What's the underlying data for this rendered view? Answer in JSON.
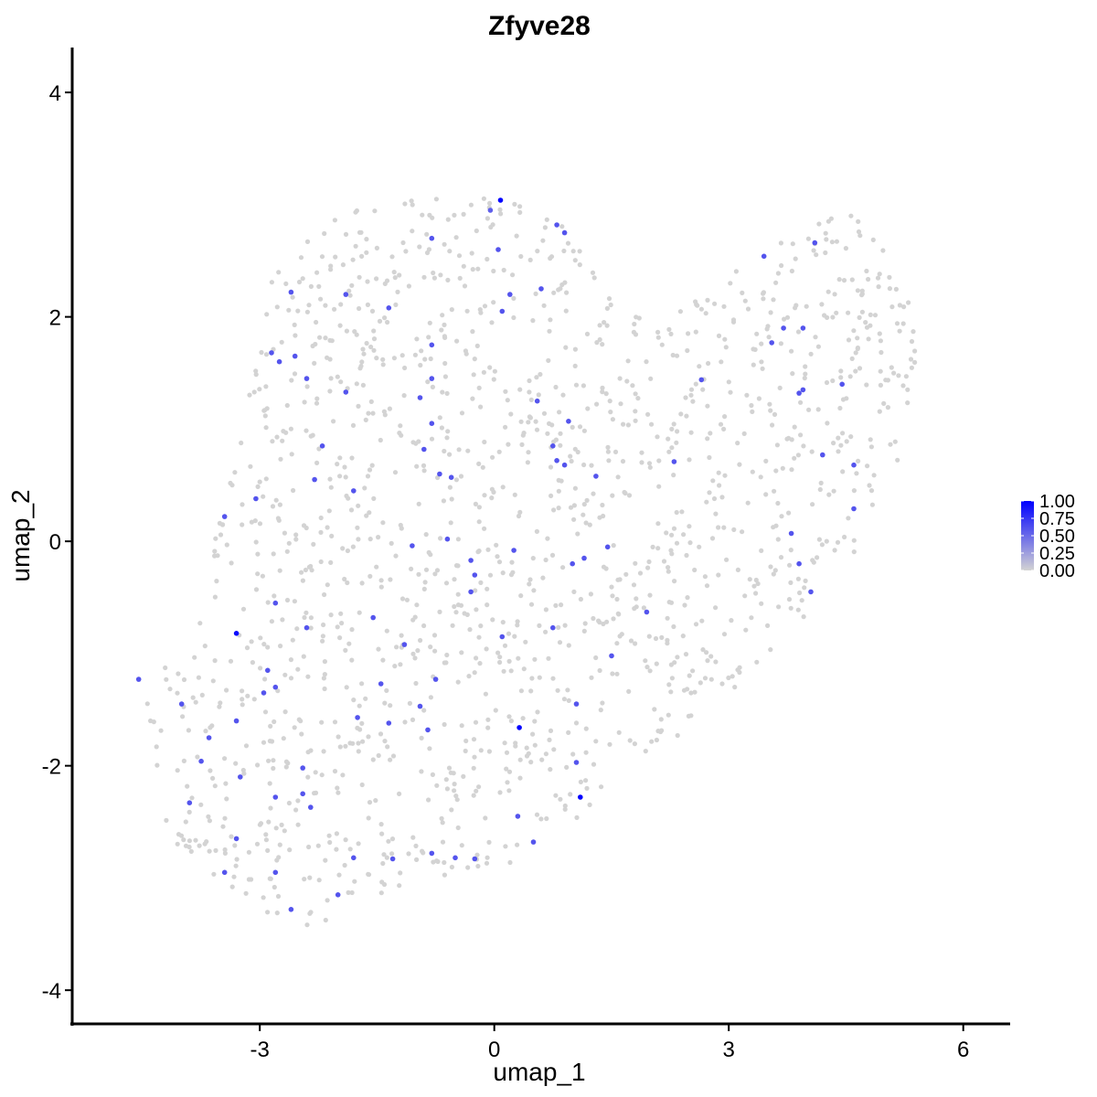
{
  "chart_data": {
    "type": "scatter",
    "title": "Zfyve28",
    "xlabel": "umap_1",
    "ylabel": "umap_2",
    "xlim": [
      -5.4,
      6.6
    ],
    "ylim": [
      -4.3,
      4.4
    ],
    "x_ticks": [
      -3,
      0,
      3,
      6
    ],
    "y_ticks": [
      -4,
      -2,
      0,
      2,
      4
    ],
    "grid": false,
    "color_low": "#d3d3d3",
    "color_high": "#0000ff",
    "legend": {
      "position": "right",
      "labels": [
        "1.00",
        "0.75",
        "0.50",
        "0.25",
        "0.00"
      ],
      "values": [
        1.0,
        0.75,
        0.5,
        0.25,
        0.0
      ]
    },
    "background_cell_count": 1500,
    "background_region": [
      [
        -4.5,
        -1.2
      ],
      [
        -4.2,
        -2.6
      ],
      [
        -3.4,
        -3.2
      ],
      [
        -2.2,
        -3.5
      ],
      [
        -1.3,
        -3.1
      ],
      [
        0.0,
        -3.0
      ],
      [
        0.9,
        -2.6
      ],
      [
        1.9,
        -2.0
      ],
      [
        2.6,
        -1.6
      ],
      [
        3.4,
        -1.1
      ],
      [
        4.4,
        -0.4
      ],
      [
        5.1,
        0.4
      ],
      [
        5.4,
        1.6
      ],
      [
        5.3,
        2.4
      ],
      [
        4.6,
        3.0
      ],
      [
        4.0,
        2.8
      ],
      [
        3.3,
        2.6
      ],
      [
        2.8,
        2.2
      ],
      [
        1.8,
        2.0
      ],
      [
        1.3,
        2.4
      ],
      [
        0.9,
        2.8
      ],
      [
        0.1,
        3.1
      ],
      [
        -1.0,
        3.05
      ],
      [
        -2.1,
        2.9
      ],
      [
        -2.9,
        2.3
      ],
      [
        -3.1,
        1.4
      ],
      [
        -3.3,
        0.8
      ],
      [
        -3.6,
        0.0
      ],
      [
        -3.8,
        -0.8
      ],
      [
        -4.0,
        -1.0
      ]
    ],
    "expressing_cells": [
      {
        "x": 0.08,
        "y": 3.04,
        "v": 1.0
      },
      {
        "x": -0.05,
        "y": 2.95,
        "v": 0.55
      },
      {
        "x": 0.8,
        "y": 2.82,
        "v": 0.6
      },
      {
        "x": 0.9,
        "y": 2.75,
        "v": 0.6
      },
      {
        "x": -0.8,
        "y": 2.7,
        "v": 0.6
      },
      {
        "x": 0.05,
        "y": 2.6,
        "v": 0.6
      },
      {
        "x": -1.9,
        "y": 2.2,
        "v": 0.6
      },
      {
        "x": 0.2,
        "y": 2.2,
        "v": 0.6
      },
      {
        "x": 0.6,
        "y": 2.25,
        "v": 0.6
      },
      {
        "x": -2.6,
        "y": 2.22,
        "v": 0.6
      },
      {
        "x": -1.35,
        "y": 2.08,
        "v": 0.6
      },
      {
        "x": 0.1,
        "y": 2.05,
        "v": 0.6
      },
      {
        "x": -0.8,
        "y": 1.75,
        "v": 0.6
      },
      {
        "x": -2.85,
        "y": 1.68,
        "v": 0.6
      },
      {
        "x": -2.55,
        "y": 1.65,
        "v": 0.6
      },
      {
        "x": -2.75,
        "y": 1.6,
        "v": 0.6
      },
      {
        "x": -2.4,
        "y": 1.45,
        "v": 0.6
      },
      {
        "x": -0.8,
        "y": 1.45,
        "v": 0.6
      },
      {
        "x": -1.9,
        "y": 1.33,
        "v": 0.6
      },
      {
        "x": -0.95,
        "y": 1.28,
        "v": 0.6
      },
      {
        "x": 0.55,
        "y": 1.25,
        "v": 0.6
      },
      {
        "x": -0.8,
        "y": 1.05,
        "v": 0.6
      },
      {
        "x": 0.95,
        "y": 1.07,
        "v": 0.6
      },
      {
        "x": -2.2,
        "y": 0.85,
        "v": 0.6
      },
      {
        "x": -0.9,
        "y": 0.82,
        "v": 0.6
      },
      {
        "x": 0.75,
        "y": 0.85,
        "v": 0.6
      },
      {
        "x": 0.8,
        "y": 0.72,
        "v": 0.6
      },
      {
        "x": 0.9,
        "y": 0.68,
        "v": 0.6
      },
      {
        "x": -0.7,
        "y": 0.6,
        "v": 0.6
      },
      {
        "x": -0.55,
        "y": 0.57,
        "v": 0.6
      },
      {
        "x": 1.3,
        "y": 0.58,
        "v": 0.6
      },
      {
        "x": -2.3,
        "y": 0.55,
        "v": 0.6
      },
      {
        "x": -1.8,
        "y": 0.45,
        "v": 0.6
      },
      {
        "x": -3.05,
        "y": 0.38,
        "v": 0.6
      },
      {
        "x": -3.45,
        "y": 0.22,
        "v": 0.6
      },
      {
        "x": -0.6,
        "y": 0.02,
        "v": 0.6
      },
      {
        "x": -1.05,
        "y": -0.04,
        "v": 0.6
      },
      {
        "x": 0.25,
        "y": -0.08,
        "v": 0.6
      },
      {
        "x": 1.45,
        "y": -0.05,
        "v": 0.6
      },
      {
        "x": -0.3,
        "y": -0.17,
        "v": 0.6
      },
      {
        "x": 1.15,
        "y": -0.15,
        "v": 0.6
      },
      {
        "x": 1.0,
        "y": -0.2,
        "v": 0.6
      },
      {
        "x": -0.25,
        "y": -0.3,
        "v": 0.6
      },
      {
        "x": -0.3,
        "y": -0.45,
        "v": 0.6
      },
      {
        "x": -2.8,
        "y": -0.55,
        "v": 0.6
      },
      {
        "x": -1.55,
        "y": -0.68,
        "v": 0.6
      },
      {
        "x": 1.95,
        "y": -0.63,
        "v": 0.6
      },
      {
        "x": 0.75,
        "y": -0.77,
        "v": 0.6
      },
      {
        "x": -2.4,
        "y": -0.77,
        "v": 0.6
      },
      {
        "x": -3.3,
        "y": -0.82,
        "v": 0.95
      },
      {
        "x": 0.1,
        "y": -0.85,
        "v": 0.6
      },
      {
        "x": -1.15,
        "y": -0.92,
        "v": 0.6
      },
      {
        "x": 1.5,
        "y": -1.02,
        "v": 0.6
      },
      {
        "x": -0.75,
        "y": -1.23,
        "v": 0.6
      },
      {
        "x": -1.45,
        "y": -1.27,
        "v": 0.6
      },
      {
        "x": -2.8,
        "y": -1.3,
        "v": 0.6
      },
      {
        "x": -2.95,
        "y": -1.35,
        "v": 0.6
      },
      {
        "x": -4.55,
        "y": -1.23,
        "v": 0.6
      },
      {
        "x": -2.9,
        "y": -1.15,
        "v": 0.6
      },
      {
        "x": -4.0,
        "y": -1.45,
        "v": 0.6
      },
      {
        "x": -0.95,
        "y": -1.47,
        "v": 0.6
      },
      {
        "x": 1.05,
        "y": -1.45,
        "v": 0.6
      },
      {
        "x": -1.75,
        "y": -1.57,
        "v": 0.6
      },
      {
        "x": -3.3,
        "y": -1.6,
        "v": 0.6
      },
      {
        "x": -1.35,
        "y": -1.62,
        "v": 0.6
      },
      {
        "x": 0.32,
        "y": -1.66,
        "v": 1.0
      },
      {
        "x": -0.85,
        "y": -1.68,
        "v": 0.6
      },
      {
        "x": -3.65,
        "y": -1.75,
        "v": 0.6
      },
      {
        "x": 1.05,
        "y": -1.97,
        "v": 0.6
      },
      {
        "x": -3.75,
        "y": -1.96,
        "v": 0.6
      },
      {
        "x": -2.45,
        "y": -2.02,
        "v": 0.6
      },
      {
        "x": -3.25,
        "y": -2.1,
        "v": 0.6
      },
      {
        "x": -2.45,
        "y": -2.25,
        "v": 0.6
      },
      {
        "x": -2.8,
        "y": -2.28,
        "v": 0.6
      },
      {
        "x": 1.1,
        "y": -2.28,
        "v": 1.0
      },
      {
        "x": -3.9,
        "y": -2.33,
        "v": 0.6
      },
      {
        "x": -2.35,
        "y": -2.37,
        "v": 0.6
      },
      {
        "x": 0.3,
        "y": -2.45,
        "v": 0.6
      },
      {
        "x": -3.3,
        "y": -2.65,
        "v": 0.6
      },
      {
        "x": 0.5,
        "y": -2.68,
        "v": 0.6
      },
      {
        "x": -0.8,
        "y": -2.78,
        "v": 0.6
      },
      {
        "x": -1.3,
        "y": -2.83,
        "v": 0.6
      },
      {
        "x": -1.8,
        "y": -2.82,
        "v": 0.6
      },
      {
        "x": -0.5,
        "y": -2.82,
        "v": 0.6
      },
      {
        "x": -0.25,
        "y": -2.83,
        "v": 0.6
      },
      {
        "x": -3.45,
        "y": -2.95,
        "v": 0.6
      },
      {
        "x": -2.8,
        "y": -2.95,
        "v": 0.6
      },
      {
        "x": -2.0,
        "y": -3.15,
        "v": 0.6
      },
      {
        "x": -2.6,
        "y": -3.28,
        "v": 0.6
      },
      {
        "x": 3.45,
        "y": 2.54,
        "v": 0.6
      },
      {
        "x": 4.1,
        "y": 2.66,
        "v": 0.6
      },
      {
        "x": 3.7,
        "y": 1.9,
        "v": 0.6
      },
      {
        "x": 3.95,
        "y": 1.9,
        "v": 0.6
      },
      {
        "x": 3.55,
        "y": 1.77,
        "v": 0.6
      },
      {
        "x": 2.65,
        "y": 1.44,
        "v": 0.6
      },
      {
        "x": 4.45,
        "y": 1.4,
        "v": 0.6
      },
      {
        "x": 3.95,
        "y": 1.35,
        "v": 0.6
      },
      {
        "x": 3.9,
        "y": 1.32,
        "v": 0.6
      },
      {
        "x": 4.2,
        "y": 0.77,
        "v": 0.6
      },
      {
        "x": 2.3,
        "y": 0.71,
        "v": 0.6
      },
      {
        "x": 4.6,
        "y": 0.68,
        "v": 0.6
      },
      {
        "x": 4.6,
        "y": 0.29,
        "v": 0.6
      },
      {
        "x": 3.8,
        "y": 0.07,
        "v": 0.6
      },
      {
        "x": 3.9,
        "y": -0.2,
        "v": 0.6
      },
      {
        "x": 4.05,
        "y": -0.45,
        "v": 0.6
      }
    ]
  }
}
